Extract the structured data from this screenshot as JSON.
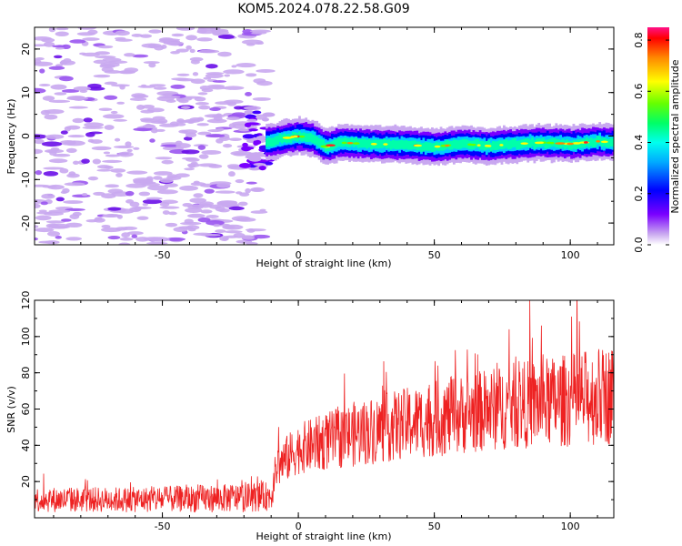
{
  "title": "KOM5.2024.078.22.58.G09",
  "colors": {
    "snr_line": "#ee2222",
    "weak_blob": "#c9a8f0",
    "frame": "#000000"
  },
  "chart_data": [
    {
      "type": "heatmap",
      "xlabel": "Height of straight line (km)",
      "ylabel": "Frequency (Hz)",
      "xlim": [
        -97,
        116
      ],
      "ylim": [
        -25,
        25
      ],
      "xticks": [
        -50,
        0,
        50,
        100
      ],
      "xtick_labels": [
        "-50",
        "0",
        "50",
        "100"
      ],
      "yticks": [
        -20,
        -10,
        0,
        10,
        20
      ],
      "ytick_labels": [
        "-20",
        "-10",
        "0",
        "10",
        "20"
      ],
      "colorbar": {
        "label": "Normalized spectral amplitude",
        "range": [
          0,
          0.85
        ],
        "ticks": [
          0,
          0.2,
          0.4,
          0.6,
          0.8
        ],
        "tick_labels": [
          "0.0",
          "0.2",
          "0.4",
          "0.6",
          "0.8"
        ],
        "colormap": "hsv-like (violet to red)"
      },
      "signal_track": {
        "description_points_x": [
          -12,
          -5,
          0,
          5,
          10,
          15,
          25,
          40,
          50,
          60,
          70,
          80,
          90,
          100,
          110,
          116
        ],
        "description_points_freq": [
          -1.5,
          -0.5,
          0,
          -0.5,
          -2.5,
          -1.5,
          -1.8,
          -2.0,
          -2.5,
          -1.8,
          -2.3,
          -1.8,
          -1.5,
          -1.8,
          -1.2,
          -1.5
        ],
        "noise_region_x": [
          -97,
          -12
        ]
      }
    },
    {
      "type": "line",
      "xlabel": "Height of straight line (km)",
      "ylabel": "SNR (v/v)",
      "xlim": [
        -97,
        116
      ],
      "ylim": [
        0,
        120
      ],
      "xticks": [
        -50,
        0,
        50,
        100
      ],
      "xtick_labels": [
        "-50",
        "0",
        "50",
        "100"
      ],
      "yticks": [
        20,
        40,
        60,
        80,
        100,
        120
      ],
      "ytick_labels": [
        "20",
        "40",
        "60",
        "80",
        "100",
        "120"
      ],
      "trend": {
        "x": [
          -97,
          -60,
          -20,
          -10,
          -8,
          0,
          10,
          20,
          40,
          60,
          80,
          100,
          116
        ],
        "mean_snr": [
          10,
          10,
          11,
          12,
          28,
          38,
          42,
          46,
          52,
          57,
          62,
          65,
          68
        ],
        "spread_snr": [
          7,
          7,
          8,
          8,
          12,
          14,
          16,
          18,
          20,
          22,
          24,
          26,
          28
        ]
      }
    }
  ]
}
